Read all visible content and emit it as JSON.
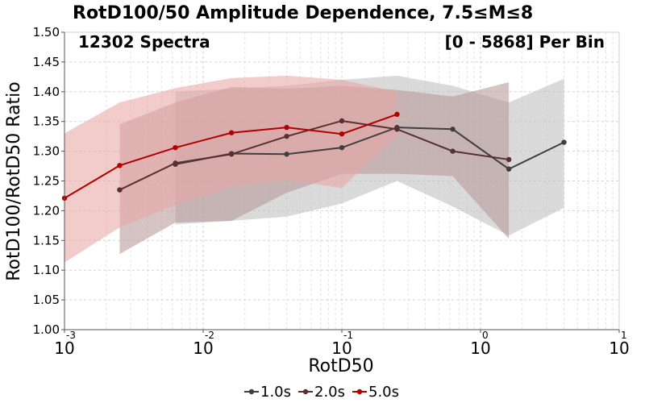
{
  "chart_data": {
    "type": "line",
    "title": "RotD100/50 Amplitude Dependence, 7.5≤M≤8",
    "xlabel": "RotD50",
    "ylabel": "RotD100/RotD50 Ratio",
    "xscale": "log",
    "xlim": [
      0.001,
      10
    ],
    "ylim": [
      1.0,
      1.5
    ],
    "x_tick_labels": [
      {
        "base": "10",
        "exp": "-3"
      },
      {
        "base": "10",
        "exp": "-2"
      },
      {
        "base": "10",
        "exp": "-1"
      },
      {
        "base": "10",
        "exp": "0"
      },
      {
        "base": "10",
        "exp": "1"
      }
    ],
    "y_ticks": [
      "1.00",
      "1.05",
      "1.10",
      "1.15",
      "1.20",
      "1.25",
      "1.30",
      "1.35",
      "1.40",
      "1.45",
      "1.50"
    ],
    "grid": true,
    "legend_position": "bottom-center",
    "annotations": {
      "left": "12302 Spectra",
      "right": "[0 - 5868] Per Bin"
    },
    "series": [
      {
        "name": "1.0s",
        "color": "#3f3f3f",
        "band_color": "#bfbfbf",
        "x": [
          0.0063,
          0.016,
          0.04,
          0.1,
          0.25,
          0.63,
          1.6,
          4.0
        ],
        "y": [
          1.278,
          1.296,
          1.295,
          1.306,
          1.34,
          1.337,
          1.27,
          1.315
        ],
        "band_upper": [
          1.4,
          1.405,
          1.41,
          1.42,
          1.427,
          1.41,
          1.382,
          1.422
        ],
        "band_lower": [
          1.177,
          1.183,
          1.19,
          1.212,
          1.25,
          1.207,
          1.158,
          1.205
        ]
      },
      {
        "name": "2.0s",
        "color": "#5a2f2f",
        "band_color": "#b89a9a",
        "x": [
          0.0025,
          0.0063,
          0.016,
          0.04,
          0.1,
          0.25,
          0.63,
          1.6
        ],
        "y": [
          1.235,
          1.28,
          1.295,
          1.325,
          1.351,
          1.337,
          1.3,
          1.286
        ],
        "band_upper": [
          1.345,
          1.382,
          1.408,
          1.405,
          1.41,
          1.403,
          1.392,
          1.416
        ],
        "band_lower": [
          1.127,
          1.18,
          1.183,
          1.23,
          1.262,
          1.262,
          1.258,
          1.153
        ]
      },
      {
        "name": "5.0s",
        "color": "#b00000",
        "band_color": "#e8a5a5",
        "x": [
          0.001,
          0.0025,
          0.0063,
          0.016,
          0.04,
          0.1,
          0.25
        ],
        "y": [
          1.221,
          1.276,
          1.306,
          1.331,
          1.34,
          1.329,
          1.362
        ],
        "band_upper": [
          1.33,
          1.382,
          1.406,
          1.423,
          1.427,
          1.42,
          1.4
        ],
        "band_lower": [
          1.113,
          1.172,
          1.21,
          1.24,
          1.252,
          1.238,
          1.327
        ]
      }
    ]
  }
}
